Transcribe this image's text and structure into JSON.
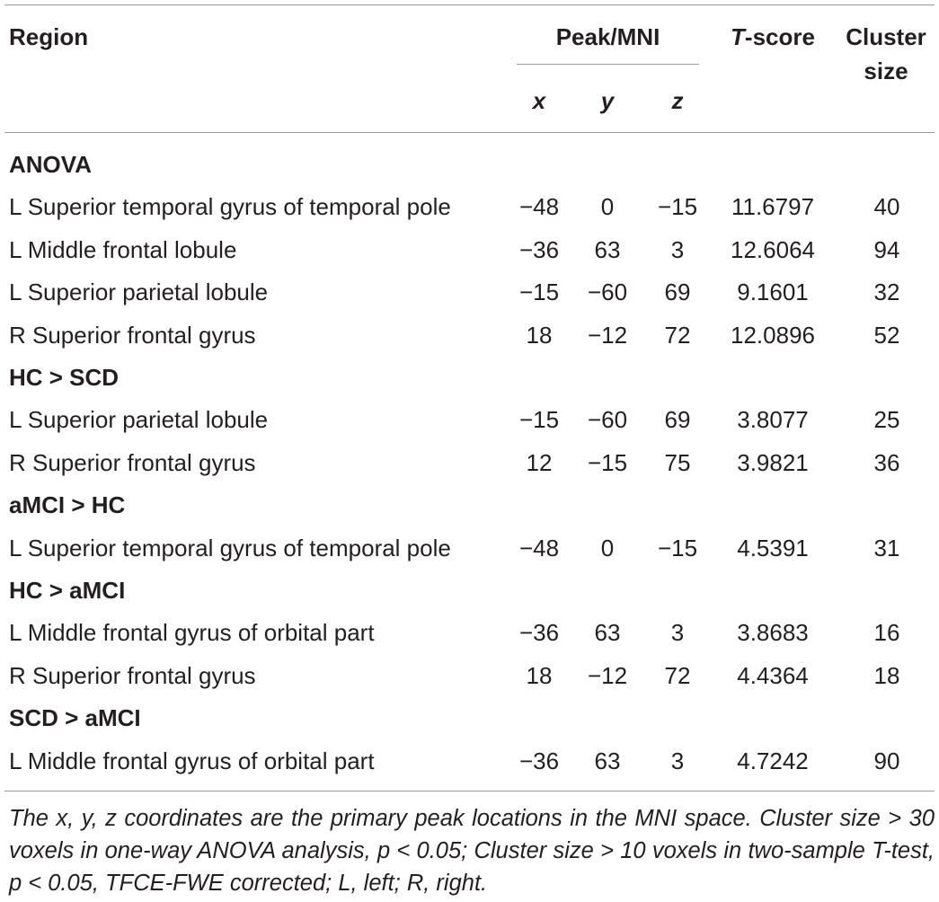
{
  "header": {
    "region": "Region",
    "peak_mni": "Peak/MNI",
    "x": "x",
    "y": "y",
    "z": "z",
    "t_score_t": "T",
    "t_score_rest": "-score",
    "cluster_line1": "Cluster",
    "cluster_line2": "size"
  },
  "rows": [
    {
      "group": "ANOVA"
    },
    {
      "region": "L Superior temporal gyrus of temporal pole",
      "x": "−48",
      "y": "0",
      "z": "−15",
      "t": "11.6797",
      "n": "40"
    },
    {
      "region": "L Middle frontal lobule",
      "x": "−36",
      "y": "63",
      "z": "3",
      "t": "12.6064",
      "n": "94"
    },
    {
      "region": "L Superior parietal lobule",
      "x": "−15",
      "y": "−60",
      "z": "69",
      "t": "9.1601",
      "n": "32"
    },
    {
      "region": "R Superior frontal gyrus",
      "x": "18",
      "y": "−12",
      "z": "72",
      "t": "12.0896",
      "n": "52"
    },
    {
      "group": "HC > SCD"
    },
    {
      "region": "L Superior parietal lobule",
      "x": "−15",
      "y": "−60",
      "z": "69",
      "t": "3.8077",
      "n": "25"
    },
    {
      "region": "R Superior frontal gyrus",
      "x": "12",
      "y": "−15",
      "z": "75",
      "t": "3.9821",
      "n": "36"
    },
    {
      "group": "aMCI > HC"
    },
    {
      "region": "L Superior temporal gyrus of temporal pole",
      "x": "−48",
      "y": "0",
      "z": "−15",
      "t": "4.5391",
      "n": "31"
    },
    {
      "group": "HC > aMCI"
    },
    {
      "region": "L Middle frontal gyrus of orbital part",
      "x": "−36",
      "y": "63",
      "z": "3",
      "t": "3.8683",
      "n": "16"
    },
    {
      "region": "R Superior frontal gyrus",
      "x": "18",
      "y": "−12",
      "z": "72",
      "t": "4.4364",
      "n": "18"
    },
    {
      "group": "SCD > aMCI"
    },
    {
      "region": "L Middle frontal gyrus of orbital part",
      "x": "−36",
      "y": "63",
      "z": "3",
      "t": "4.7242",
      "n": "90"
    }
  ],
  "footnote": "The x, y, z coordinates are the primary peak locations in the MNI space. Cluster size > 30 voxels in one-way ANOVA analysis, p < 0.05; Cluster size > 10 voxels in two-sample T-test, p < 0.05, TFCE-FWE corrected; L, left; R, right."
}
